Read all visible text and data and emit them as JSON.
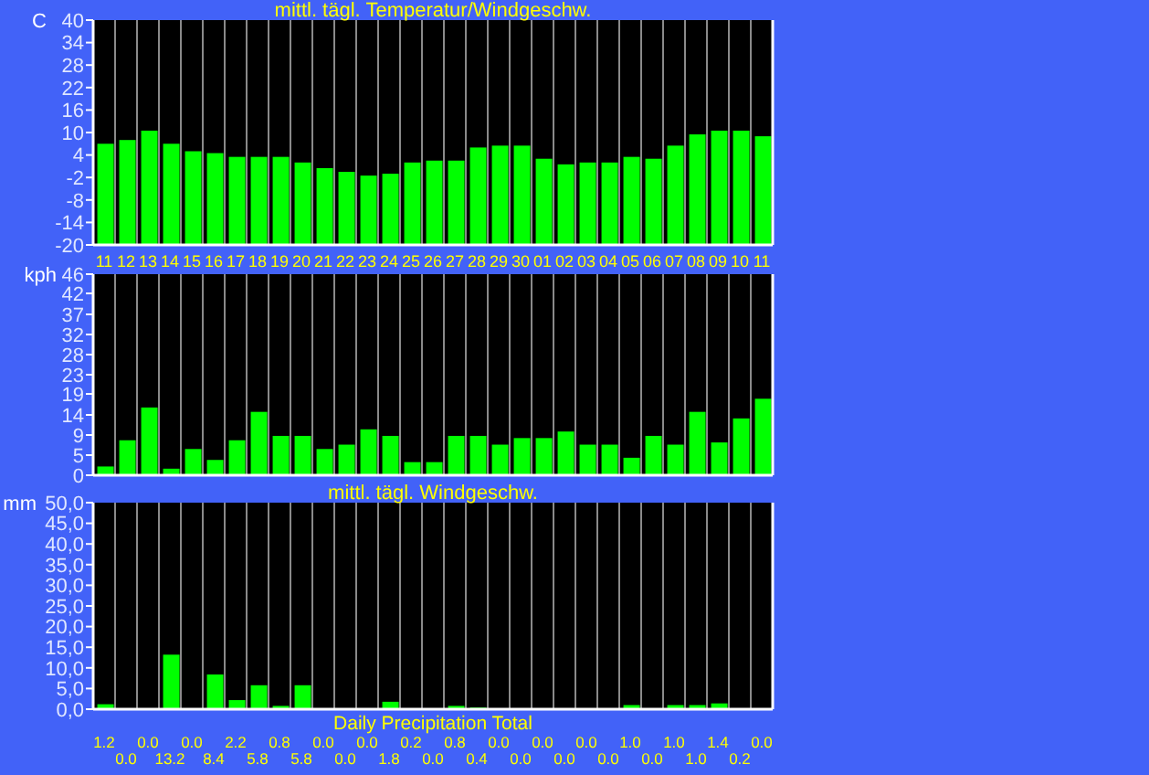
{
  "chart_data": [
    {
      "type": "bar",
      "title": "mittl. tägl. Temperatur/Windgeschw.",
      "ylabel": "C",
      "categories": [
        "11",
        "12",
        "13",
        "14",
        "15",
        "16",
        "17",
        "18",
        "19",
        "20",
        "21",
        "22",
        "23",
        "24",
        "25",
        "26",
        "27",
        "28",
        "29",
        "30",
        "01",
        "02",
        "03",
        "04",
        "05",
        "06",
        "07",
        "08",
        "09",
        "10",
        "11"
      ],
      "base": [
        -20,
        -20,
        -20,
        -20,
        -20,
        -20,
        -20,
        -20,
        -20,
        -20,
        -20,
        -20,
        -20,
        -20,
        -20,
        -20,
        -20,
        -20,
        -20,
        -20,
        -20,
        -20,
        -20,
        -20,
        -20,
        -20,
        -20,
        -20,
        -20,
        -20,
        -20
      ],
      "values": [
        27,
        28,
        30.5,
        27,
        25,
        24.5,
        23.5,
        23.5,
        23.5,
        22,
        20.5,
        19.5,
        18.5,
        19,
        22,
        22.5,
        22.5,
        26,
        26.5,
        26.5,
        23,
        21.5,
        22,
        22,
        23.5,
        23,
        26.5,
        29.5,
        30.5,
        30.5,
        29
      ],
      "color": "#00ff00",
      "ylim": [
        -20,
        40
      ],
      "yticks": [
        -20,
        -14,
        -8,
        -2,
        4,
        10,
        16,
        22,
        28,
        34,
        40
      ],
      "grid": "x"
    },
    {
      "type": "bar",
      "ylabel": "kph",
      "categories": [
        null,
        null,
        null,
        null,
        null,
        null,
        null,
        null,
        null,
        null,
        null,
        null,
        null,
        null,
        null,
        null,
        null,
        null,
        null,
        null,
        null,
        null,
        null,
        null,
        null,
        null,
        null,
        null,
        null,
        null,
        null
      ],
      "values": [
        2,
        8,
        15.5,
        1.5,
        6,
        3.5,
        8,
        14.5,
        9,
        9,
        6,
        7,
        10.5,
        9,
        3,
        3,
        9,
        9,
        7,
        8.5,
        8.5,
        10,
        7,
        7,
        4,
        9,
        7,
        14.5,
        7.5,
        13,
        17.5
      ],
      "color": "#00ff00",
      "ylim": [
        0,
        46
      ],
      "yticks": [
        0,
        {
          "value": 4.6,
          "label": "5"
        },
        {
          "value": 9.2,
          "label": "9"
        },
        {
          "value": 13.8,
          "label": "14"
        },
        {
          "value": 18.6,
          "label": "19"
        },
        23,
        {
          "value": 27.6,
          "label": "28"
        },
        {
          "value": 32.2,
          "label": "32"
        },
        {
          "value": 36.8,
          "label": "37"
        },
        {
          "value": 41.6,
          "label": "42"
        },
        46
      ],
      "grid": "x"
    },
    {
      "type": "bar",
      "title": "mittl. tägl. Windgeschw.",
      "xlabel": "Daily Precipitation Total",
      "ylabel": "mm",
      "categories": [
        null,
        null,
        null,
        null,
        null,
        null,
        null,
        null,
        null,
        null,
        null,
        null,
        null,
        null,
        null,
        null,
        null,
        null,
        null,
        null,
        null,
        null,
        null,
        null,
        null,
        null,
        null,
        null,
        null,
        null,
        null
      ],
      "values": [
        1.2,
        0,
        0,
        13.2,
        0,
        8.4,
        2.2,
        5.8,
        0.8,
        5.8,
        0,
        0,
        0,
        1.8,
        0.2,
        0,
        0.8,
        0.4,
        0,
        0,
        0,
        0,
        0,
        0,
        1.0,
        0,
        1.0,
        1.0,
        1.4,
        0.2,
        0
      ],
      "value_labels": [
        "1.2",
        "0.0",
        "0.0",
        "13.2",
        "0.0",
        "8.4",
        "2.2",
        "5.8",
        "0.8",
        "5.8",
        "0.0",
        "0.0",
        "0.0",
        "1.8",
        "0.2",
        "0.0",
        "0.8",
        "0.4",
        "0.0",
        "0.0",
        "0.0",
        "0.0",
        "0.0",
        "0.0",
        "1.0",
        "0.0",
        "1.0",
        "1.0",
        "1.4",
        "0.2",
        "0.0"
      ],
      "color": "#00ff00",
      "ylim": [
        0,
        50
      ],
      "yticks": [
        {
          "value": 0,
          "label": "0,0"
        },
        {
          "value": 5,
          "label": "5,0"
        },
        {
          "value": 10,
          "label": "10,0"
        },
        {
          "value": 15,
          "label": "15,0"
        },
        {
          "value": 20,
          "label": "20,0"
        },
        {
          "value": 25,
          "label": "25,0"
        },
        {
          "value": 30,
          "label": "30,0"
        },
        {
          "value": 35,
          "label": "35,0"
        },
        {
          "value": 40,
          "label": "40,0"
        },
        {
          "value": 45,
          "label": "45,0"
        },
        {
          "value": 50,
          "label": "50,0"
        }
      ],
      "grid": "x"
    }
  ]
}
